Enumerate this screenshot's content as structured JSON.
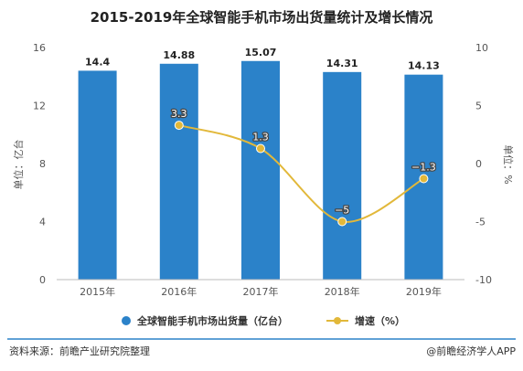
{
  "colors": {
    "bar": "#2b82c9",
    "line": "#e2b83a",
    "divider": "#2b82c9"
  },
  "chart_data": {
    "type": "bar",
    "title": "2015-2019年全球智能手机市场出货量统计及增长情况",
    "categories": [
      "2015年",
      "2016年",
      "2017年",
      "2018年",
      "2019年"
    ],
    "y_left": {
      "label": "单位：亿台",
      "range": [
        0,
        16
      ],
      "ticks": [
        "0",
        "4",
        "8",
        "12",
        "16"
      ]
    },
    "y_right": {
      "label": "单位：%",
      "range": [
        -10,
        10
      ],
      "ticks": [
        "-10",
        "-5",
        "0",
        "5",
        "10"
      ]
    },
    "series": [
      {
        "name": "全球智能手机市场出货量（亿台）",
        "type": "bar",
        "axis": "left",
        "values": [
          14.4,
          14.88,
          15.07,
          14.31,
          14.13
        ],
        "labels": [
          "14.4",
          "14.88",
          "15.07",
          "14.31",
          "14.13"
        ]
      },
      {
        "name": "增速（%）",
        "type": "line",
        "axis": "right",
        "values": [
          null,
          3.3,
          1.3,
          -5,
          -1.3
        ],
        "labels": [
          "",
          "3.3",
          "1.3",
          "−5",
          "−1.3"
        ]
      }
    ],
    "grid": false,
    "legend": "bottom"
  },
  "footer": {
    "source": "资料来源：前瞻产业研究院整理",
    "brand": "@前瞻经济学人APP"
  }
}
